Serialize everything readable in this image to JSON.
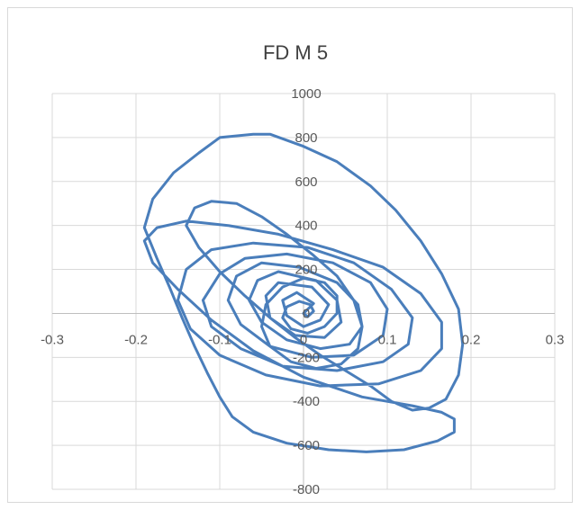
{
  "chart_data": {
    "type": "scatter",
    "title": "FD M 5",
    "xlabel": "",
    "ylabel": "",
    "xlim": [
      -0.3,
      0.3
    ],
    "ylim": [
      -800,
      1000
    ],
    "x_ticks": [
      "-0.3",
      "-0.2",
      "-0.1",
      "0",
      "0.1",
      "0.2",
      "0.3"
    ],
    "y_ticks": [
      "1000",
      "800",
      "600",
      "400",
      "200",
      "0",
      "-200",
      "-400",
      "-600",
      "-800"
    ],
    "grid": true,
    "legend": "none",
    "series": [
      {
        "color": "#4a7ebb",
        "style": "line",
        "points": [
          [
            0.0,
            0.0
          ],
          [
            0.012,
            45
          ],
          [
            -0.008,
            95
          ],
          [
            -0.025,
            60
          ],
          [
            -0.02,
            -10
          ],
          [
            0.0,
            -60
          ],
          [
            0.02,
            -30
          ],
          [
            0.03,
            40
          ],
          [
            0.01,
            120
          ],
          [
            -0.03,
            140
          ],
          [
            -0.045,
            80
          ],
          [
            -0.04,
            -20
          ],
          [
            -0.01,
            -100
          ],
          [
            0.025,
            -110
          ],
          [
            0.045,
            -40
          ],
          [
            0.04,
            60
          ],
          [
            0.015,
            150
          ],
          [
            -0.03,
            190
          ],
          [
            -0.055,
            150
          ],
          [
            -0.065,
            60
          ],
          [
            -0.05,
            -40
          ],
          [
            -0.02,
            -120
          ],
          [
            0.02,
            -160
          ],
          [
            0.055,
            -140
          ],
          [
            0.07,
            -60
          ],
          [
            0.065,
            40
          ],
          [
            0.04,
            140
          ],
          [
            -0.005,
            210
          ],
          [
            -0.05,
            230
          ],
          [
            -0.08,
            170
          ],
          [
            -0.09,
            60
          ],
          [
            -0.075,
            -50
          ],
          [
            -0.04,
            -150
          ],
          [
            0.01,
            -200
          ],
          [
            0.06,
            -190
          ],
          [
            0.095,
            -100
          ],
          [
            0.1,
            20
          ],
          [
            0.08,
            140
          ],
          [
            0.035,
            230
          ],
          [
            -0.02,
            270
          ],
          [
            -0.07,
            250
          ],
          [
            -0.1,
            180
          ],
          [
            -0.12,
            60
          ],
          [
            -0.11,
            -60
          ],
          [
            -0.075,
            -160
          ],
          [
            -0.025,
            -240
          ],
          [
            0.04,
            -260
          ],
          [
            0.095,
            -220
          ],
          [
            0.125,
            -140
          ],
          [
            0.13,
            -20
          ],
          [
            0.105,
            110
          ],
          [
            0.06,
            230
          ],
          [
            0.005,
            300
          ],
          [
            -0.06,
            320
          ],
          [
            -0.11,
            290
          ],
          [
            -0.14,
            200
          ],
          [
            -0.15,
            60
          ],
          [
            -0.135,
            -70
          ],
          [
            -0.1,
            -190
          ],
          [
            -0.045,
            -280
          ],
          [
            0.02,
            -330
          ],
          [
            0.09,
            -320
          ],
          [
            0.14,
            -260
          ],
          [
            0.165,
            -160
          ],
          [
            0.165,
            -40
          ],
          [
            0.14,
            90
          ],
          [
            0.095,
            210
          ],
          [
            0.035,
            290
          ],
          [
            -0.03,
            360
          ],
          [
            -0.09,
            400
          ],
          [
            -0.14,
            420
          ],
          [
            -0.175,
            390
          ],
          [
            -0.19,
            330
          ],
          [
            -0.18,
            230
          ],
          [
            -0.15,
            110
          ],
          [
            -0.11,
            -30
          ],
          [
            -0.06,
            -170
          ],
          [
            0.0,
            -290
          ],
          [
            0.07,
            -380
          ],
          [
            0.13,
            -420
          ],
          [
            0.165,
            -450
          ],
          [
            0.18,
            -480
          ],
          [
            0.18,
            -540
          ],
          [
            0.16,
            -580
          ],
          [
            0.12,
            -620
          ],
          [
            0.075,
            -630
          ],
          [
            0.03,
            -620
          ],
          [
            -0.02,
            -590
          ],
          [
            -0.06,
            -540
          ],
          [
            -0.085,
            -470
          ],
          [
            -0.1,
            -380
          ],
          [
            -0.115,
            -270
          ],
          [
            -0.13,
            -150
          ],
          [
            -0.145,
            -20
          ],
          [
            -0.16,
            120
          ],
          [
            -0.175,
            250
          ],
          [
            -0.19,
            390
          ],
          [
            -0.18,
            520
          ],
          [
            -0.155,
            640
          ],
          [
            -0.125,
            730
          ],
          [
            -0.1,
            800
          ],
          [
            -0.06,
            815
          ],
          [
            -0.04,
            815
          ],
          [
            0.0,
            760
          ],
          [
            0.04,
            690
          ],
          [
            0.08,
            580
          ],
          [
            0.11,
            470
          ],
          [
            0.14,
            330
          ],
          [
            0.165,
            180
          ],
          [
            0.185,
            20
          ],
          [
            0.19,
            -140
          ],
          [
            0.185,
            -280
          ],
          [
            0.17,
            -390
          ],
          [
            0.15,
            -430
          ],
          [
            0.13,
            -440
          ],
          [
            0.105,
            -400
          ],
          [
            0.08,
            -330
          ],
          [
            0.05,
            -260
          ],
          [
            0.02,
            -190
          ],
          [
            -0.01,
            -110
          ],
          [
            -0.04,
            -20
          ],
          [
            -0.07,
            80
          ],
          [
            -0.1,
            190
          ],
          [
            -0.125,
            300
          ],
          [
            -0.14,
            400
          ],
          [
            -0.13,
            480
          ],
          [
            -0.11,
            510
          ],
          [
            -0.08,
            500
          ],
          [
            -0.05,
            440
          ],
          [
            -0.02,
            360
          ],
          [
            0.01,
            270
          ],
          [
            0.04,
            170
          ],
          [
            0.06,
            60
          ],
          [
            0.07,
            -60
          ],
          [
            0.065,
            -160
          ],
          [
            0.045,
            -230
          ],
          [
            0.015,
            -250
          ],
          [
            -0.015,
            -220
          ],
          [
            -0.04,
            -150
          ],
          [
            -0.05,
            -60
          ],
          [
            -0.045,
            40
          ],
          [
            -0.025,
            120
          ],
          [
            0.0,
            160
          ],
          [
            0.025,
            140
          ],
          [
            0.04,
            80
          ],
          [
            0.04,
            0
          ],
          [
            0.025,
            -60
          ],
          [
            0.005,
            -90
          ],
          [
            -0.015,
            -70
          ],
          [
            -0.025,
            -20
          ],
          [
            -0.02,
            30
          ],
          [
            -0.005,
            55
          ],
          [
            0.008,
            40
          ],
          [
            0.012,
            10
          ],
          [
            0.005,
            -15
          ],
          [
            0.0,
            0.0
          ]
        ]
      }
    ]
  }
}
